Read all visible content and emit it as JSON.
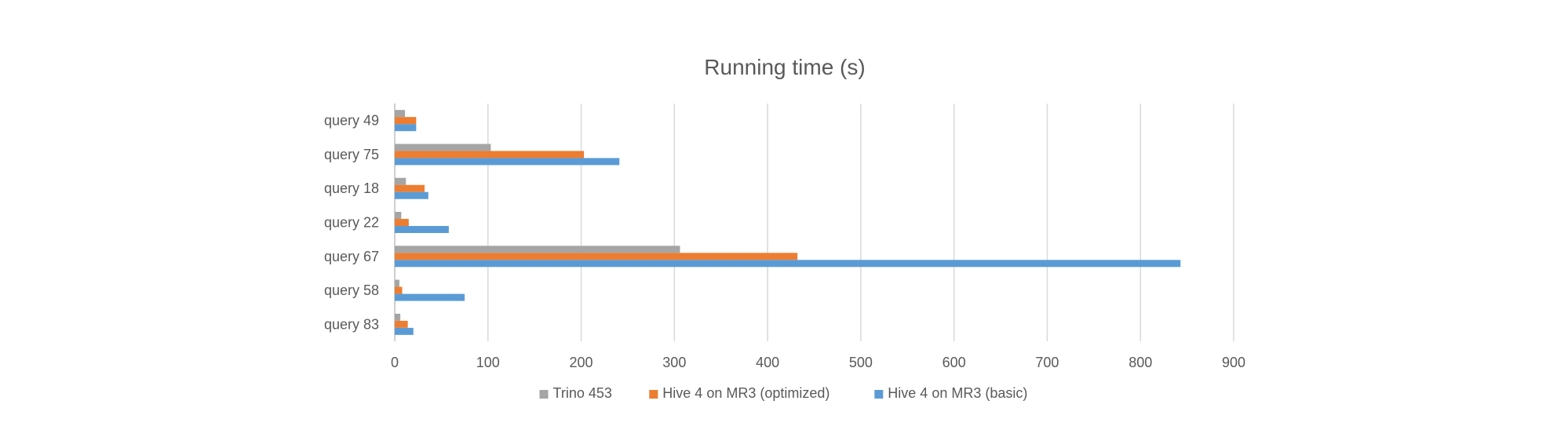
{
  "chart_data": {
    "type": "bar",
    "orientation": "horizontal",
    "title": "Running time (s)",
    "xlabel": "",
    "ylabel": "",
    "categories": [
      "query 49",
      "query 75",
      "query 18",
      "query 22",
      "query 67",
      "query 58",
      "query 83"
    ],
    "series": [
      {
        "name": "Trino 453",
        "color": "#a5a5a5",
        "values": [
          11,
          103,
          12,
          7,
          306,
          5,
          6
        ]
      },
      {
        "name": "Hive 4 on MR3 (optimized)",
        "color": "#ed7d31",
        "values": [
          23,
          203,
          32,
          15,
          432,
          8,
          14
        ]
      },
      {
        "name": "Hive 4 on MR3 (basic)",
        "color": "#5b9bd5",
        "values": [
          23,
          241,
          36,
          58,
          843,
          75,
          20
        ]
      }
    ],
    "xlim": [
      0,
      900
    ],
    "xticks": [
      0,
      100,
      200,
      300,
      400,
      500,
      600,
      700,
      800,
      900
    ],
    "grid": true,
    "legend_position": "bottom"
  }
}
